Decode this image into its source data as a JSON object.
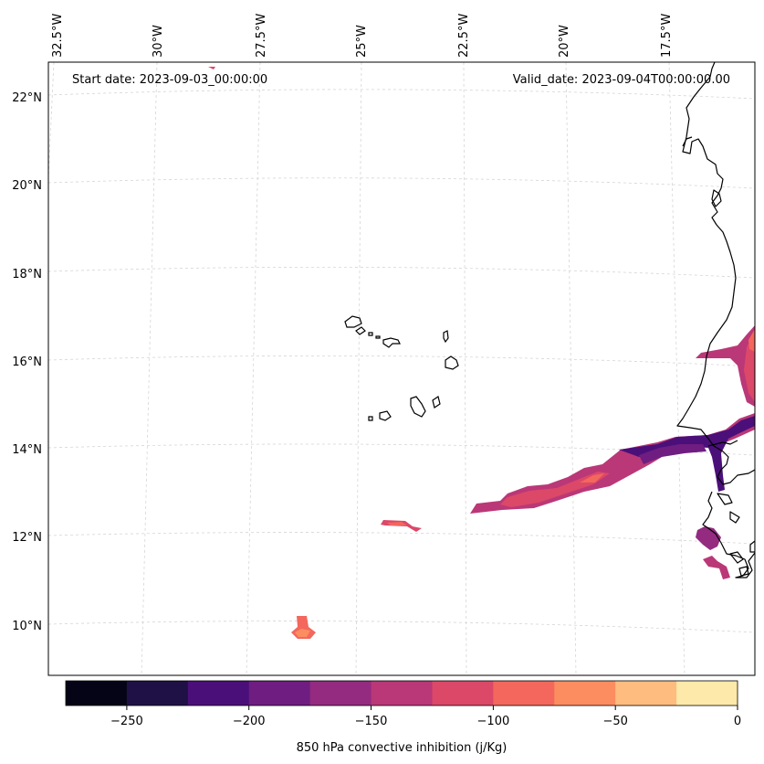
{
  "start_date": "Start date: 2023-09-03_00:00:00",
  "valid_date": "Valid_date: 2023-09-04T00:00:00.00",
  "lon_labels": [
    "32.5°W",
    "30°W",
    "27.5°W",
    "25°W",
    "22.5°W",
    "20°W",
    "17.5°W"
  ],
  "lat_labels": [
    "22°N",
    "20°N",
    "18°N",
    "16°N",
    "14°N",
    "12°N",
    "10°N"
  ],
  "colorbar": {
    "title": "850 hPa convective inhibition (j/Kg)",
    "tick_labels": [
      "−250",
      "−200",
      "−150",
      "−100",
      "−50",
      "0"
    ],
    "levels": [
      -275,
      -250,
      -225,
      -200,
      -175,
      -150,
      -125,
      -100,
      -75,
      -50,
      -25,
      0
    ],
    "colors": [
      "#050417",
      "#1f1145",
      "#4b0f7a",
      "#6f1d81",
      "#942b80",
      "#ba3877",
      "#dc4868",
      "#f3675c",
      "#fc8d60",
      "#febd7f",
      "#fde9a9"
    ]
  },
  "map": {
    "lon_range": [
      "32.5°W",
      "16°W"
    ],
    "lat_range": [
      "9°N",
      "22.8°N"
    ],
    "gridlines": true,
    "coastline_color": "#000000"
  }
}
